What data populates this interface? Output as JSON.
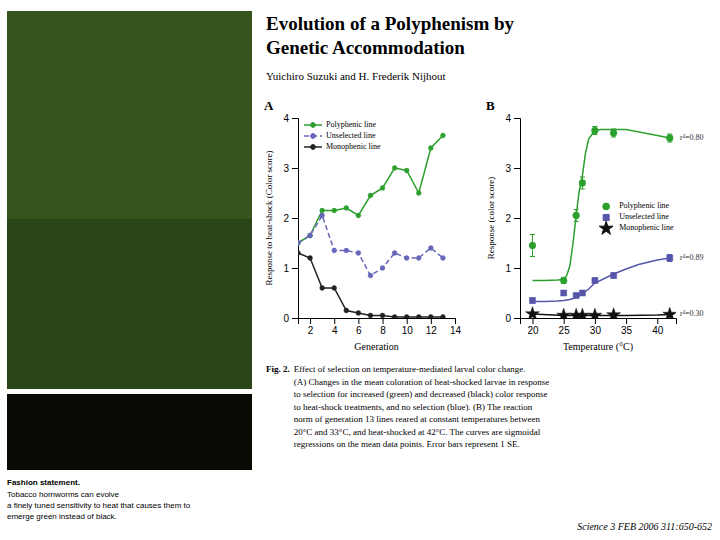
{
  "title": [
    "Evolution of a Polyphenism by",
    "Genetic Accommodation"
  ],
  "subtitle": "Yuichiro Suzuki and H. Frederik Nijhout",
  "annotations": [
    "Fashion statement.",
    "Tobacco hornworms can evolve\na finely tuned sensitivity to heat that causes them to\nemerge green instead of black.",
    "Fig. 2.",
    "Effect of selection on temperature-mediated larval color change.\n(A) Changes in the mean coloration of heat-shocked larvae in response\nto selection for increased (green) and decreased (black) color response\nto heat-shock treatments, and no selection (blue). (B) The reaction\nnorm of generation 13 lines reared at constant temperatures between\n20°C and 33°C, and heat-shocked at 42°C. The curves are sigmoidal\nregressions on the mean data points. Error bars represent 1 SE.",
    "Science 3 FEB 2006 311:650-652"
  ],
  "chart_data": [
    {
      "type": "line",
      "title": "A",
      "x_label": "Generation",
      "y_label": "Response to heat-shock (Color score)",
      "xlim": [
        1,
        14
      ],
      "ylim": [
        0,
        4
      ],
      "xticks": [
        2,
        4,
        6,
        8,
        10,
        12,
        14
      ],
      "yticks": [
        0,
        1,
        2,
        3,
        4
      ],
      "grid": false,
      "legend": "upper left",
      "series": [
        {
          "name": "Polyphenic line",
          "color": "#2ca02c",
          "line_style": "solid",
          "marker": "circle",
          "x": [
            1,
            2,
            3,
            4,
            5,
            6,
            7,
            8,
            9,
            10,
            11,
            12,
            13
          ],
          "values": [
            1.5,
            1.65,
            2.15,
            2.15,
            2.2,
            2.05,
            2.45,
            2.6,
            3.0,
            2.95,
            2.5,
            3.4,
            3.65
          ]
        },
        {
          "name": "Unselected line",
          "color": "#6666bb",
          "line_style": "dashed",
          "marker": "circle",
          "x": [
            1,
            2,
            3,
            4,
            5,
            6,
            7,
            8,
            9,
            10,
            11,
            12,
            13
          ],
          "values": [
            1.5,
            1.65,
            2.05,
            1.35,
            1.35,
            1.3,
            0.85,
            1.0,
            1.3,
            1.2,
            1.2,
            1.4,
            1.2
          ]
        },
        {
          "name": "Monophenic line",
          "color": "#222222",
          "line_style": "solid",
          "marker": "circle",
          "x": [
            1,
            2,
            3,
            4,
            5,
            6,
            7,
            8,
            9,
            10,
            11,
            12,
            13
          ],
          "values": [
            1.3,
            1.2,
            0.6,
            0.6,
            0.15,
            0.1,
            0.05,
            0.05,
            0.02,
            0.02,
            0.02,
            0.02,
            0.02
          ]
        }
      ]
    },
    {
      "type": "scatter",
      "title": "B",
      "x_label": "Temperature (°C)",
      "y_label": "Response (color score)",
      "xlim": [
        18,
        43
      ],
      "ylim": [
        0,
        4
      ],
      "xticks": [
        20,
        25,
        30,
        35,
        40
      ],
      "yticks": [
        0,
        1,
        2,
        3,
        4
      ],
      "grid": false,
      "legend": "right",
      "series": [
        {
          "type": "line",
          "color": "#2ca02c",
          "line_style": "solid",
          "annotation": "r²=0.80",
          "x": [
            20,
            22,
            24,
            25,
            25.5,
            26,
            26.5,
            27,
            27.5,
            28,
            28.5,
            29,
            30,
            31,
            33,
            35,
            40,
            42
          ],
          "values": [
            0.75,
            0.75,
            0.76,
            0.77,
            0.85,
            1.05,
            1.5,
            2.05,
            2.55,
            2.85,
            3.3,
            3.58,
            3.75,
            3.77,
            3.77,
            3.77,
            3.65,
            3.6
          ]
        },
        {
          "name": "Polyphenic line",
          "type": "scatter",
          "color": "#2ca02c",
          "marker": "circle",
          "x": [
            20,
            25,
            27,
            28,
            30,
            33,
            42
          ],
          "values": [
            1.45,
            0.75,
            2.05,
            2.7,
            3.75,
            3.7,
            3.6
          ],
          "errors": [
            0.22,
            0.06,
            0.12,
            0.12,
            0.08,
            0.08,
            0.08
          ]
        },
        {
          "type": "line",
          "color": "#5555aa",
          "line_style": "solid",
          "annotation": "r²=0.89",
          "x": [
            20,
            22,
            24,
            25,
            26,
            27,
            28,
            29,
            30,
            33,
            35,
            37,
            40,
            42
          ],
          "values": [
            0.33,
            0.33,
            0.34,
            0.35,
            0.37,
            0.41,
            0.48,
            0.58,
            0.7,
            0.88,
            0.98,
            1.07,
            1.16,
            1.2
          ]
        },
        {
          "name": "Unselected line",
          "type": "scatter",
          "color": "#5555aa",
          "marker": "square",
          "x": [
            20,
            25,
            27,
            28,
            30,
            33,
            42
          ],
          "values": [
            0.35,
            0.5,
            0.45,
            0.5,
            0.75,
            0.85,
            1.2
          ],
          "errors": [
            0.05,
            0.04,
            0.04,
            0.04,
            0.05,
            0.05,
            0.07
          ]
        },
        {
          "type": "line",
          "color": "#111111",
          "line_style": "solid",
          "annotation": "r²=0.30",
          "x": [
            20,
            25,
            30,
            35,
            40,
            42
          ],
          "values": [
            0.08,
            0.05,
            0.05,
            0.05,
            0.06,
            0.07
          ]
        },
        {
          "name": "Monophenic line",
          "type": "scatter",
          "color": "#111111",
          "marker": "star",
          "x": [
            20,
            25,
            27,
            28,
            30,
            33,
            42
          ],
          "values": [
            0.08,
            0.05,
            0.05,
            0.05,
            0.05,
            0.06,
            0.07
          ],
          "errors": [
            0.02,
            0.01,
            0.01,
            0.01,
            0.01,
            0.01,
            0.01
          ]
        }
      ]
    }
  ]
}
